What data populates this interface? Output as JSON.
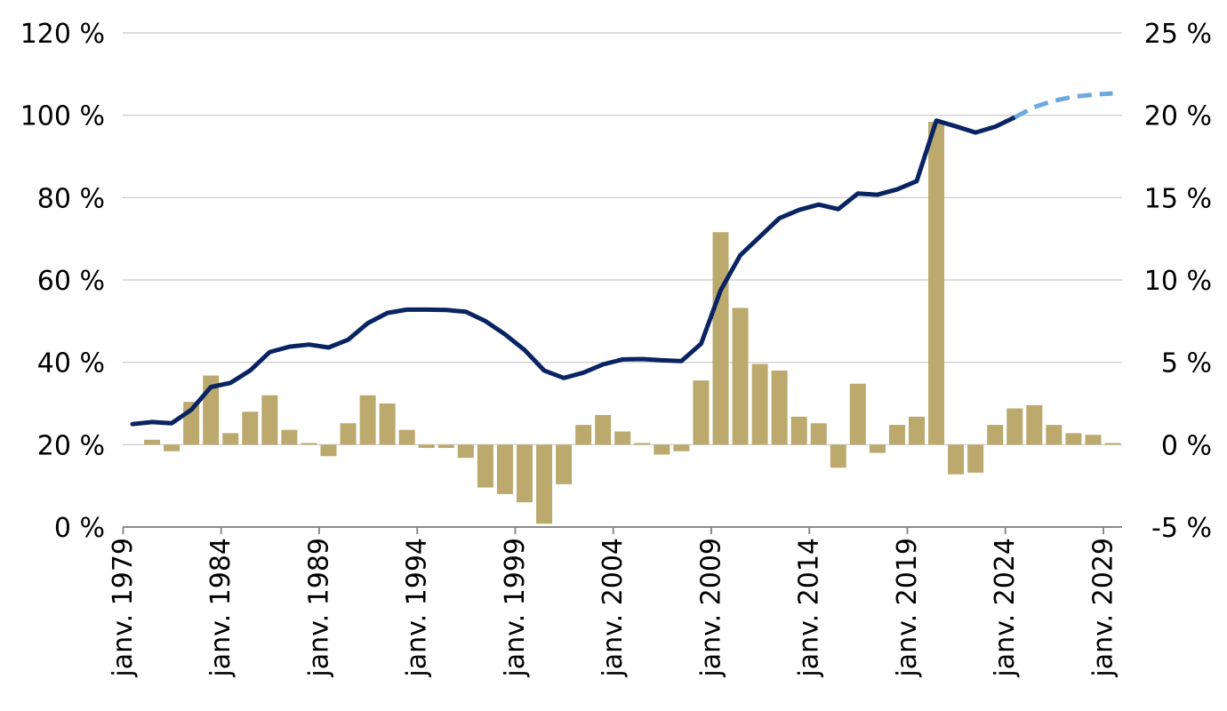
{
  "chart_data": {
    "type": "bar",
    "title": "",
    "xlabel": "",
    "ylabel": "",
    "y_left": {
      "lim": [
        0,
        120
      ],
      "ticks": [
        0,
        20,
        40,
        60,
        80,
        100,
        120
      ],
      "tick_labels": [
        "0 %",
        "20 %",
        "40 %",
        "60 %",
        "80 %",
        "100 %",
        "120 %"
      ]
    },
    "y_right": {
      "lim": [
        -5,
        25
      ],
      "ticks": [
        -5,
        0,
        5,
        10,
        15,
        20,
        25
      ],
      "tick_labels": [
        "-5 %",
        "0 %",
        "5 %",
        "10 %",
        "15 %",
        "20 %",
        "25 %"
      ]
    },
    "x_tick_labels": [
      "janv. 1979",
      "janv. 1984",
      "janv. 1989",
      "janv. 1994",
      "janv. 1999",
      "janv. 2004",
      "janv. 2009",
      "janv. 2014",
      "janv. 2019",
      "janv. 2024",
      "janv. 2029"
    ],
    "grid": "horizontal",
    "legend": "none",
    "colors": {
      "bars": "#BBA96E",
      "line": "#0A2463",
      "projection": "#6DA8DF",
      "grid": "#C8C8C8",
      "axis": "#8C8C8C"
    },
    "years": [
      1979,
      1980,
      1981,
      1982,
      1983,
      1984,
      1985,
      1986,
      1987,
      1988,
      1989,
      1990,
      1991,
      1992,
      1993,
      1994,
      1995,
      1996,
      1997,
      1998,
      1999,
      2000,
      2001,
      2002,
      2003,
      2004,
      2005,
      2006,
      2007,
      2008,
      2009,
      2010,
      2011,
      2012,
      2013,
      2014,
      2015,
      2016,
      2017,
      2018,
      2019,
      2020,
      2021,
      2022,
      2023,
      2024,
      2025,
      2026,
      2027,
      2028,
      2029
    ],
    "series": [
      {
        "type": "bar",
        "axis": "right",
        "values": [
          null,
          0.3,
          -0.4,
          2.6,
          4.2,
          0.7,
          2.0,
          3.0,
          0.9,
          0.1,
          -0.7,
          1.3,
          3.0,
          2.5,
          0.9,
          -0.2,
          -0.2,
          -0.8,
          -2.6,
          -3.0,
          -3.5,
          -4.8,
          -2.4,
          1.2,
          1.8,
          0.8,
          0.1,
          -0.6,
          -0.4,
          3.9,
          12.9,
          8.3,
          4.9,
          4.5,
          1.7,
          1.3,
          -1.4,
          3.7,
          -0.5,
          1.2,
          1.7,
          19.6,
          -1.8,
          -1.7,
          1.2,
          2.2,
          2.4,
          1.2,
          0.7,
          0.6,
          0.1
        ]
      },
      {
        "type": "line",
        "axis": "left",
        "style": "solid",
        "values": [
          25.0,
          25.5,
          25.2,
          28.5,
          34.0,
          35.0,
          38.0,
          42.5,
          43.8,
          44.3,
          43.6,
          45.5,
          49.5,
          52.0,
          52.8,
          52.8,
          52.7,
          52.3,
          50.0,
          46.8,
          43.0,
          38.0,
          36.2,
          37.5,
          39.5,
          40.7,
          40.8,
          40.5,
          40.3,
          44.5,
          57.5,
          66.0,
          70.5,
          75.0,
          77.0,
          78.3,
          77.2,
          81.0,
          80.7,
          82.0,
          84.0,
          98.7,
          97.3,
          95.8,
          97.2,
          99.5,
          null,
          null,
          null,
          null,
          null
        ]
      },
      {
        "type": "line",
        "axis": "left",
        "style": "dashed",
        "values": [
          null,
          null,
          null,
          null,
          null,
          null,
          null,
          null,
          null,
          null,
          null,
          null,
          null,
          null,
          null,
          null,
          null,
          null,
          null,
          null,
          null,
          null,
          null,
          null,
          null,
          null,
          null,
          null,
          null,
          null,
          null,
          null,
          null,
          null,
          null,
          null,
          null,
          null,
          null,
          null,
          null,
          null,
          null,
          null,
          null,
          99.5,
          102.0,
          103.5,
          104.5,
          105.0,
          105.3
        ]
      }
    ]
  }
}
